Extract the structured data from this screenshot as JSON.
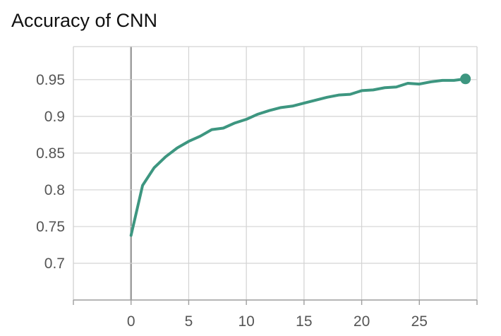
{
  "chart_data": {
    "type": "line",
    "title": "Accuracy of CNN",
    "xlabel": "",
    "ylabel": "",
    "xlim": [
      -5,
      30
    ],
    "ylim": [
      0.65,
      0.995
    ],
    "xticks": [
      0,
      5,
      10,
      15,
      20,
      25
    ],
    "xtick_labels": [
      "0",
      "5",
      "10",
      "15",
      "20",
      "25"
    ],
    "yticks": [
      0.7,
      0.75,
      0.8,
      0.85,
      0.9,
      0.95
    ],
    "ytick_labels": [
      "0.7",
      "0.75",
      "0.8",
      "0.85",
      "0.9",
      "0.95"
    ],
    "grid": true,
    "zero_line": true,
    "line_color": "#3d9680",
    "series": [
      {
        "x": [
          0,
          1,
          2,
          3,
          4,
          5,
          6,
          7,
          8,
          9,
          10,
          11,
          12,
          13,
          14,
          15,
          16,
          17,
          18,
          19,
          20,
          21,
          22,
          23,
          24,
          25,
          26,
          27,
          28,
          29
        ],
        "values": [
          0.738,
          0.806,
          0.83,
          0.845,
          0.857,
          0.866,
          0.873,
          0.882,
          0.884,
          0.891,
          0.896,
          0.903,
          0.908,
          0.912,
          0.914,
          0.918,
          0.922,
          0.926,
          0.929,
          0.93,
          0.935,
          0.936,
          0.939,
          0.94,
          0.945,
          0.944,
          0.947,
          0.949,
          0.949,
          0.951
        ]
      }
    ]
  }
}
